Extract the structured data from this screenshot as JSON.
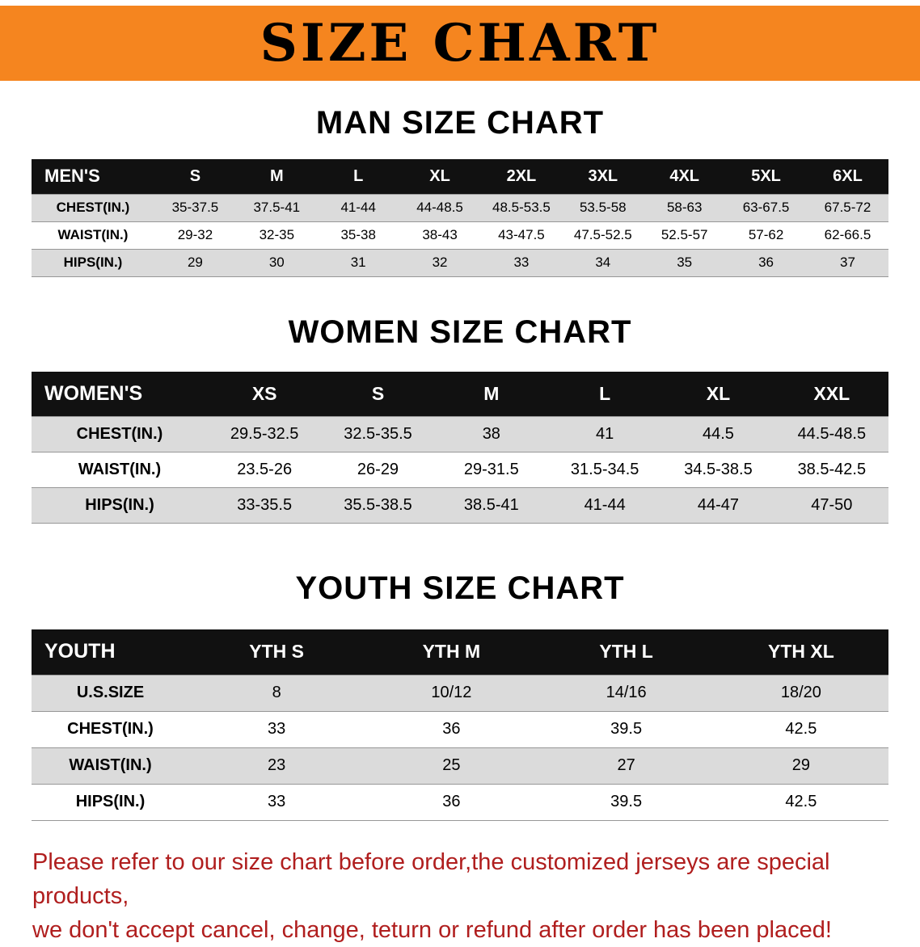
{
  "banner": {
    "title": "SIZE CHART"
  },
  "colors": {
    "banner_bg": "#F5851F",
    "header_bg": "#111111",
    "stripe": "#DBDBDB",
    "disclaimer_red": "#B01E1E"
  },
  "sections": [
    {
      "id": "men",
      "heading": "MAN SIZE CHART",
      "table": {
        "header": [
          "MEN'S",
          "S",
          "M",
          "L",
          "XL",
          "2XL",
          "3XL",
          "4XL",
          "5XL",
          "6XL"
        ],
        "rows": [
          [
            "CHEST(IN.)",
            "35-37.5",
            "37.5-41",
            "41-44",
            "44-48.5",
            "48.5-53.5",
            "53.5-58",
            "58-63",
            "63-67.5",
            "67.5-72"
          ],
          [
            "WAIST(IN.)",
            "29-32",
            "32-35",
            "35-38",
            "38-43",
            "43-47.5",
            "47.5-52.5",
            "52.5-57",
            "57-62",
            "62-66.5"
          ],
          [
            "HIPS(IN.)",
            "29",
            "30",
            "31",
            "32",
            "33",
            "34",
            "35",
            "36",
            "37"
          ]
        ]
      }
    },
    {
      "id": "women",
      "heading": "WOMEN SIZE CHART",
      "table": {
        "header": [
          "WOMEN'S",
          "XS",
          "S",
          "M",
          "L",
          "XL",
          "XXL"
        ],
        "rows": [
          [
            "CHEST(IN.)",
            "29.5-32.5",
            "32.5-35.5",
            "38",
            "41",
            "44.5",
            "44.5-48.5"
          ],
          [
            "WAIST(IN.)",
            "23.5-26",
            "26-29",
            "29-31.5",
            "31.5-34.5",
            "34.5-38.5",
            "38.5-42.5"
          ],
          [
            "HIPS(IN.)",
            "33-35.5",
            "35.5-38.5",
            "38.5-41",
            "41-44",
            "44-47",
            "47-50"
          ]
        ]
      }
    },
    {
      "id": "youth",
      "heading": "YOUTH SIZE CHART",
      "table": {
        "header": [
          "YOUTH",
          "YTH S",
          "YTH M",
          "YTH L",
          "YTH XL"
        ],
        "rows": [
          [
            "U.S.SIZE",
            "8",
            "10/12",
            "14/16",
            "18/20"
          ],
          [
            "CHEST(IN.)",
            "33",
            "36",
            "39.5",
            "42.5"
          ],
          [
            "WAIST(IN.)",
            "23",
            "25",
            "27",
            "29"
          ],
          [
            "HIPS(IN.)",
            "33",
            "36",
            "39.5",
            "42.5"
          ]
        ]
      }
    }
  ],
  "disclaimer": {
    "line1": "Please refer to our size chart before order,the customized jerseys are special products,",
    "line2": "we don't accept cancel, change, teturn or refund after order has been placed!"
  }
}
